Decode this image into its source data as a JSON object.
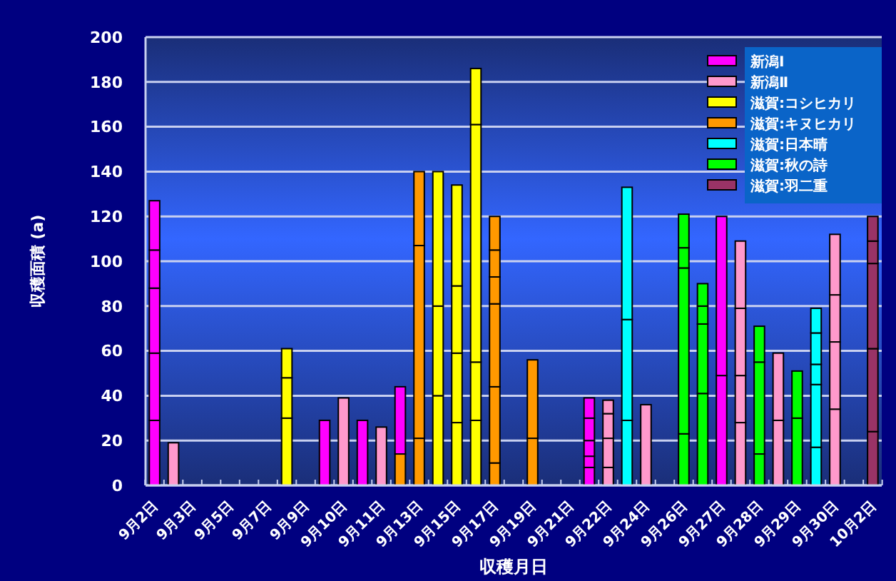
{
  "chart_data": {
    "type": "bar",
    "stacked": true,
    "xlabel": "収穫月日",
    "ylabel": "収穫面積 (a)",
    "ylim": [
      0,
      200
    ],
    "yticks": [
      0,
      20,
      40,
      60,
      80,
      100,
      120,
      140,
      160,
      180,
      200
    ],
    "grid": "y",
    "legend": "top right",
    "categories": [
      "9月2日",
      null,
      "9月3日",
      null,
      "9月5日",
      null,
      "9月7日",
      null,
      "9月9日",
      null,
      "9月10日",
      null,
      "9月11日",
      null,
      "9月13日",
      null,
      "9月15日",
      null,
      "9月17日",
      null,
      "9月19日",
      null,
      "9月21日",
      null,
      "9月22日",
      null,
      "9月24日",
      null,
      "9月26日",
      null,
      "9月27日",
      null,
      "9月28日",
      null,
      "9月29日",
      null,
      "9月30日",
      null,
      "10月2日"
    ],
    "series": [
      {
        "color": "#ff9900",
        "values": [
          null,
          null,
          null,
          null,
          null,
          null,
          null,
          null,
          null,
          null,
          null,
          null,
          null,
          14,
          null,
          null,
          null,
          null,
          null,
          null,
          null,
          null,
          null,
          null,
          null,
          null,
          null,
          null,
          null,
          null,
          null,
          null,
          null,
          null,
          null,
          null,
          null,
          null,
          null
        ]
      },
      {
        "name": "新潟Ⅰ",
        "color": "#ff00ff",
        "values": [
          29,
          null,
          null,
          null,
          null,
          null,
          null,
          null,
          null,
          29,
          null,
          29,
          null,
          30,
          null,
          null,
          null,
          null,
          null,
          null,
          null,
          null,
          null,
          8,
          null,
          null,
          null,
          null,
          null,
          null,
          49,
          null,
          null,
          null,
          null,
          null,
          null,
          null,
          null
        ]
      },
      {
        "color": "#ff00ff",
        "values": [
          30,
          null,
          null,
          null,
          null,
          null,
          null,
          null,
          null,
          null,
          null,
          null,
          null,
          null,
          null,
          null,
          null,
          null,
          null,
          null,
          null,
          null,
          null,
          5,
          null,
          null,
          null,
          null,
          null,
          null,
          71,
          null,
          null,
          null,
          null,
          null,
          null,
          null,
          null
        ]
      },
      {
        "color": "#ff00ff",
        "values": [
          29,
          null,
          null,
          null,
          null,
          null,
          null,
          null,
          null,
          null,
          null,
          null,
          null,
          null,
          null,
          null,
          null,
          null,
          null,
          null,
          null,
          null,
          null,
          7,
          null,
          null,
          null,
          null,
          null,
          null,
          null,
          null,
          null,
          null,
          null,
          null,
          null,
          null,
          null
        ]
      },
      {
        "color": "#ff00ff",
        "values": [
          17,
          null,
          null,
          null,
          null,
          null,
          null,
          null,
          null,
          null,
          null,
          null,
          null,
          null,
          null,
          null,
          null,
          null,
          null,
          null,
          null,
          null,
          null,
          10,
          null,
          null,
          null,
          null,
          null,
          null,
          null,
          null,
          null,
          null,
          null,
          null,
          null,
          null,
          null
        ]
      },
      {
        "color": "#ff00ff",
        "values": [
          22,
          null,
          null,
          null,
          null,
          null,
          null,
          null,
          null,
          null,
          null,
          null,
          null,
          null,
          null,
          null,
          null,
          null,
          null,
          null,
          null,
          null,
          null,
          9,
          null,
          null,
          null,
          null,
          null,
          null,
          null,
          null,
          null,
          null,
          null,
          null,
          null,
          null,
          null
        ]
      },
      {
        "name": "新潟Ⅱ",
        "color": "#ff99cc",
        "values": [
          null,
          19,
          null,
          null,
          null,
          null,
          null,
          null,
          null,
          null,
          39,
          null,
          26,
          null,
          null,
          null,
          null,
          null,
          null,
          null,
          null,
          null,
          null,
          null,
          8,
          null,
          36,
          null,
          null,
          null,
          null,
          28,
          null,
          29,
          null,
          null,
          34,
          null,
          null
        ]
      },
      {
        "color": "#ff99cc",
        "values": [
          null,
          null,
          null,
          null,
          null,
          null,
          null,
          null,
          null,
          null,
          null,
          null,
          null,
          null,
          null,
          null,
          null,
          null,
          null,
          null,
          null,
          null,
          null,
          null,
          13,
          null,
          null,
          null,
          null,
          null,
          null,
          21,
          null,
          30,
          null,
          null,
          30,
          null,
          null
        ]
      },
      {
        "color": "#ff99cc",
        "values": [
          null,
          null,
          null,
          null,
          null,
          null,
          null,
          null,
          null,
          null,
          null,
          null,
          null,
          null,
          null,
          null,
          null,
          null,
          null,
          null,
          null,
          null,
          null,
          null,
          11,
          null,
          null,
          null,
          null,
          null,
          null,
          30,
          null,
          null,
          null,
          null,
          21,
          null,
          null
        ]
      },
      {
        "color": "#ff99cc",
        "values": [
          null,
          null,
          null,
          null,
          null,
          null,
          null,
          null,
          null,
          null,
          null,
          null,
          null,
          null,
          null,
          null,
          null,
          null,
          null,
          null,
          null,
          null,
          null,
          null,
          6,
          null,
          null,
          null,
          null,
          null,
          null,
          30,
          null,
          null,
          null,
          null,
          27,
          null,
          null
        ]
      },
      {
        "name": "滋賀:コシヒカリ",
        "color": "#ffff00",
        "values": [
          null,
          null,
          null,
          null,
          null,
          null,
          null,
          30,
          null,
          null,
          null,
          null,
          null,
          null,
          null,
          40,
          28,
          29,
          null,
          null,
          null,
          null,
          null,
          null,
          null,
          null,
          null,
          null,
          null,
          null,
          null,
          null,
          null,
          null,
          null,
          null,
          null,
          null,
          null
        ]
      },
      {
        "color": "#ffff00",
        "values": [
          null,
          null,
          null,
          null,
          null,
          null,
          null,
          18,
          null,
          null,
          null,
          null,
          null,
          null,
          null,
          40,
          31,
          26,
          null,
          null,
          null,
          null,
          null,
          null,
          null,
          null,
          null,
          null,
          null,
          null,
          null,
          null,
          null,
          null,
          null,
          null,
          null,
          null,
          null
        ]
      },
      {
        "color": "#ffff00",
        "values": [
          null,
          null,
          null,
          null,
          null,
          null,
          null,
          13,
          null,
          null,
          null,
          null,
          null,
          null,
          null,
          60,
          30,
          106,
          null,
          null,
          null,
          null,
          null,
          null,
          null,
          null,
          null,
          null,
          null,
          null,
          null,
          null,
          null,
          null,
          null,
          null,
          null,
          null,
          null
        ]
      },
      {
        "color": "#ffff00",
        "values": [
          null,
          null,
          null,
          null,
          null,
          null,
          null,
          null,
          null,
          null,
          null,
          null,
          null,
          null,
          null,
          null,
          45,
          25,
          null,
          null,
          null,
          null,
          null,
          null,
          null,
          null,
          null,
          null,
          null,
          null,
          null,
          null,
          null,
          null,
          null,
          null,
          null,
          null,
          null
        ]
      },
      {
        "name": "滋賀:キヌヒカリ",
        "color": "#ff9900",
        "values": [
          null,
          null,
          null,
          null,
          null,
          null,
          null,
          null,
          null,
          null,
          null,
          null,
          null,
          null,
          21,
          null,
          null,
          null,
          10,
          null,
          21,
          null,
          null,
          null,
          null,
          null,
          null,
          null,
          null,
          null,
          null,
          null,
          null,
          null,
          null,
          null,
          null,
          null,
          null
        ]
      },
      {
        "color": "#ff9900",
        "values": [
          null,
          null,
          null,
          null,
          null,
          null,
          null,
          null,
          null,
          null,
          null,
          null,
          null,
          null,
          86,
          null,
          null,
          null,
          34,
          null,
          35,
          null,
          null,
          null,
          null,
          null,
          null,
          null,
          null,
          null,
          null,
          null,
          null,
          null,
          null,
          null,
          null,
          null,
          null
        ]
      },
      {
        "color": "#ff9900",
        "values": [
          null,
          null,
          null,
          null,
          null,
          null,
          null,
          null,
          null,
          null,
          null,
          null,
          null,
          null,
          33,
          null,
          null,
          null,
          37,
          null,
          null,
          null,
          null,
          null,
          null,
          null,
          null,
          null,
          null,
          null,
          null,
          null,
          null,
          null,
          null,
          null,
          null,
          null,
          null
        ]
      },
      {
        "color": "#ff9900",
        "values": [
          null,
          null,
          null,
          null,
          null,
          null,
          null,
          null,
          null,
          null,
          null,
          null,
          null,
          null,
          null,
          null,
          null,
          null,
          12,
          null,
          null,
          null,
          null,
          null,
          null,
          null,
          null,
          null,
          null,
          null,
          null,
          null,
          null,
          null,
          null,
          null,
          null,
          null,
          null
        ]
      },
      {
        "color": "#ff9900",
        "values": [
          null,
          null,
          null,
          null,
          null,
          null,
          null,
          null,
          null,
          null,
          null,
          null,
          null,
          null,
          null,
          null,
          null,
          null,
          12,
          null,
          null,
          null,
          null,
          null,
          null,
          null,
          null,
          null,
          null,
          null,
          null,
          null,
          null,
          null,
          null,
          null,
          null,
          null,
          null
        ]
      },
      {
        "color": "#ff9900",
        "values": [
          null,
          null,
          null,
          null,
          null,
          null,
          null,
          null,
          null,
          null,
          null,
          null,
          null,
          null,
          null,
          null,
          null,
          null,
          15,
          null,
          null,
          null,
          null,
          null,
          null,
          null,
          null,
          null,
          null,
          null,
          null,
          null,
          null,
          null,
          null,
          null,
          null,
          null,
          null
        ]
      },
      {
        "name": "滋賀:日本晴",
        "color": "#00ffff",
        "values": [
          null,
          null,
          null,
          null,
          null,
          null,
          null,
          null,
          null,
          null,
          null,
          null,
          null,
          null,
          null,
          null,
          null,
          null,
          null,
          null,
          null,
          null,
          null,
          null,
          null,
          29,
          null,
          null,
          null,
          null,
          null,
          null,
          null,
          null,
          null,
          17,
          null,
          null,
          null
        ]
      },
      {
        "color": "#00ffff",
        "values": [
          null,
          null,
          null,
          null,
          null,
          null,
          null,
          null,
          null,
          null,
          null,
          null,
          null,
          null,
          null,
          null,
          null,
          null,
          null,
          null,
          null,
          null,
          null,
          null,
          null,
          45,
          null,
          null,
          null,
          null,
          null,
          null,
          null,
          null,
          null,
          28,
          null,
          null,
          null
        ]
      },
      {
        "color": "#00ffff",
        "values": [
          null,
          null,
          null,
          null,
          null,
          null,
          null,
          null,
          null,
          null,
          null,
          null,
          null,
          null,
          null,
          null,
          null,
          null,
          null,
          null,
          null,
          null,
          null,
          null,
          null,
          59,
          null,
          null,
          null,
          null,
          null,
          null,
          null,
          null,
          null,
          9,
          null,
          null,
          null
        ]
      },
      {
        "color": "#00ffff",
        "values": [
          null,
          null,
          null,
          null,
          null,
          null,
          null,
          null,
          null,
          null,
          null,
          null,
          null,
          null,
          null,
          null,
          null,
          null,
          null,
          null,
          null,
          null,
          null,
          null,
          null,
          null,
          null,
          null,
          null,
          null,
          null,
          null,
          null,
          null,
          null,
          14,
          null,
          null,
          null
        ]
      },
      {
        "color": "#00ffff",
        "values": [
          null,
          null,
          null,
          null,
          null,
          null,
          null,
          null,
          null,
          null,
          null,
          null,
          null,
          null,
          null,
          null,
          null,
          null,
          null,
          null,
          null,
          null,
          null,
          null,
          null,
          null,
          null,
          null,
          null,
          null,
          null,
          null,
          null,
          null,
          null,
          11,
          null,
          null,
          null
        ]
      },
      {
        "name": "滋賀:秋の詩",
        "color": "#00ff00",
        "values": [
          null,
          null,
          null,
          null,
          null,
          null,
          null,
          null,
          null,
          null,
          null,
          null,
          null,
          null,
          null,
          null,
          null,
          null,
          null,
          null,
          null,
          null,
          null,
          null,
          null,
          null,
          null,
          null,
          23,
          41,
          null,
          null,
          14,
          null,
          30,
          null,
          null,
          null,
          null
        ]
      },
      {
        "color": "#00ff00",
        "values": [
          null,
          null,
          null,
          null,
          null,
          null,
          null,
          null,
          null,
          null,
          null,
          null,
          null,
          null,
          null,
          null,
          null,
          null,
          null,
          null,
          null,
          null,
          null,
          null,
          null,
          null,
          null,
          null,
          74,
          31,
          null,
          null,
          41,
          null,
          21,
          null,
          null,
          null,
          null
        ]
      },
      {
        "color": "#00ff00",
        "values": [
          null,
          null,
          null,
          null,
          null,
          null,
          null,
          null,
          null,
          null,
          null,
          null,
          null,
          null,
          null,
          null,
          null,
          null,
          null,
          null,
          null,
          null,
          null,
          null,
          null,
          null,
          null,
          null,
          9,
          8,
          null,
          null,
          16,
          null,
          null,
          null,
          null,
          null,
          null
        ]
      },
      {
        "color": "#00ff00",
        "values": [
          null,
          null,
          null,
          null,
          null,
          null,
          null,
          null,
          null,
          null,
          null,
          null,
          null,
          null,
          null,
          null,
          null,
          null,
          null,
          null,
          null,
          null,
          null,
          null,
          null,
          null,
          null,
          null,
          15,
          10,
          null,
          null,
          null,
          null,
          null,
          null,
          null,
          null,
          null
        ]
      },
      {
        "name": "滋賀:羽二重",
        "color": "#993366",
        "values": [
          null,
          null,
          null,
          null,
          null,
          null,
          null,
          null,
          null,
          null,
          null,
          null,
          null,
          null,
          null,
          null,
          null,
          null,
          null,
          null,
          null,
          null,
          null,
          null,
          null,
          null,
          null,
          null,
          null,
          null,
          null,
          null,
          null,
          null,
          null,
          null,
          null,
          null,
          24
        ]
      },
      {
        "color": "#993366",
        "values": [
          null,
          null,
          null,
          null,
          null,
          null,
          null,
          null,
          null,
          null,
          null,
          null,
          null,
          null,
          null,
          null,
          null,
          null,
          null,
          null,
          null,
          null,
          null,
          null,
          null,
          null,
          null,
          null,
          null,
          null,
          null,
          null,
          null,
          null,
          null,
          null,
          null,
          null,
          37
        ]
      },
      {
        "color": "#993366",
        "values": [
          null,
          null,
          null,
          null,
          null,
          null,
          null,
          null,
          null,
          null,
          null,
          null,
          null,
          null,
          null,
          null,
          null,
          null,
          null,
          null,
          null,
          null,
          null,
          null,
          null,
          null,
          null,
          null,
          null,
          null,
          null,
          null,
          null,
          null,
          null,
          null,
          null,
          null,
          38
        ]
      },
      {
        "color": "#993366",
        "values": [
          null,
          null,
          null,
          null,
          null,
          null,
          null,
          null,
          null,
          null,
          null,
          null,
          null,
          null,
          null,
          null,
          null,
          null,
          null,
          null,
          null,
          null,
          null,
          null,
          null,
          null,
          null,
          null,
          null,
          null,
          null,
          null,
          null,
          null,
          null,
          null,
          null,
          null,
          10
        ]
      },
      {
        "color": "#993366",
        "values": [
          null,
          null,
          null,
          null,
          null,
          null,
          null,
          null,
          null,
          null,
          null,
          null,
          null,
          null,
          null,
          null,
          null,
          null,
          null,
          null,
          null,
          null,
          null,
          null,
          null,
          null,
          null,
          null,
          null,
          null,
          null,
          null,
          null,
          null,
          null,
          null,
          null,
          null,
          11
        ]
      }
    ]
  }
}
